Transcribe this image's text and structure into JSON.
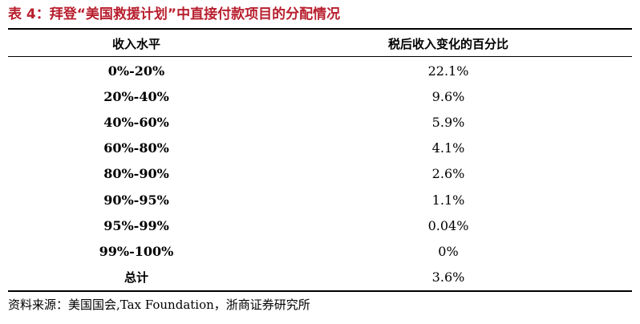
{
  "title": "表 4：拜登“美国救援计划”中直接付款项目的分配情况",
  "table": {
    "headers": [
      "收入水平",
      "税后收入变化的百分比"
    ],
    "rows": [
      {
        "label": "0%-20%",
        "value": "22.1%"
      },
      {
        "label": "20%-40%",
        "value": "9.6%"
      },
      {
        "label": "40%-60%",
        "value": "5.9%"
      },
      {
        "label": "60%-80%",
        "value": "4.1%"
      },
      {
        "label": "80%-90%",
        "value": "2.6%"
      },
      {
        "label": "90%-95%",
        "value": "1.1%"
      },
      {
        "label": "95%-99%",
        "value": "0.04%"
      },
      {
        "label": "99%-100%",
        "value": "0%"
      }
    ],
    "total": {
      "label": "总计",
      "value": "3.6%"
    }
  },
  "source": "资料来源：美国国会,Tax Foundation，浙商证券研究所",
  "colors": {
    "title": "#b81f2e",
    "text": "#000000"
  }
}
